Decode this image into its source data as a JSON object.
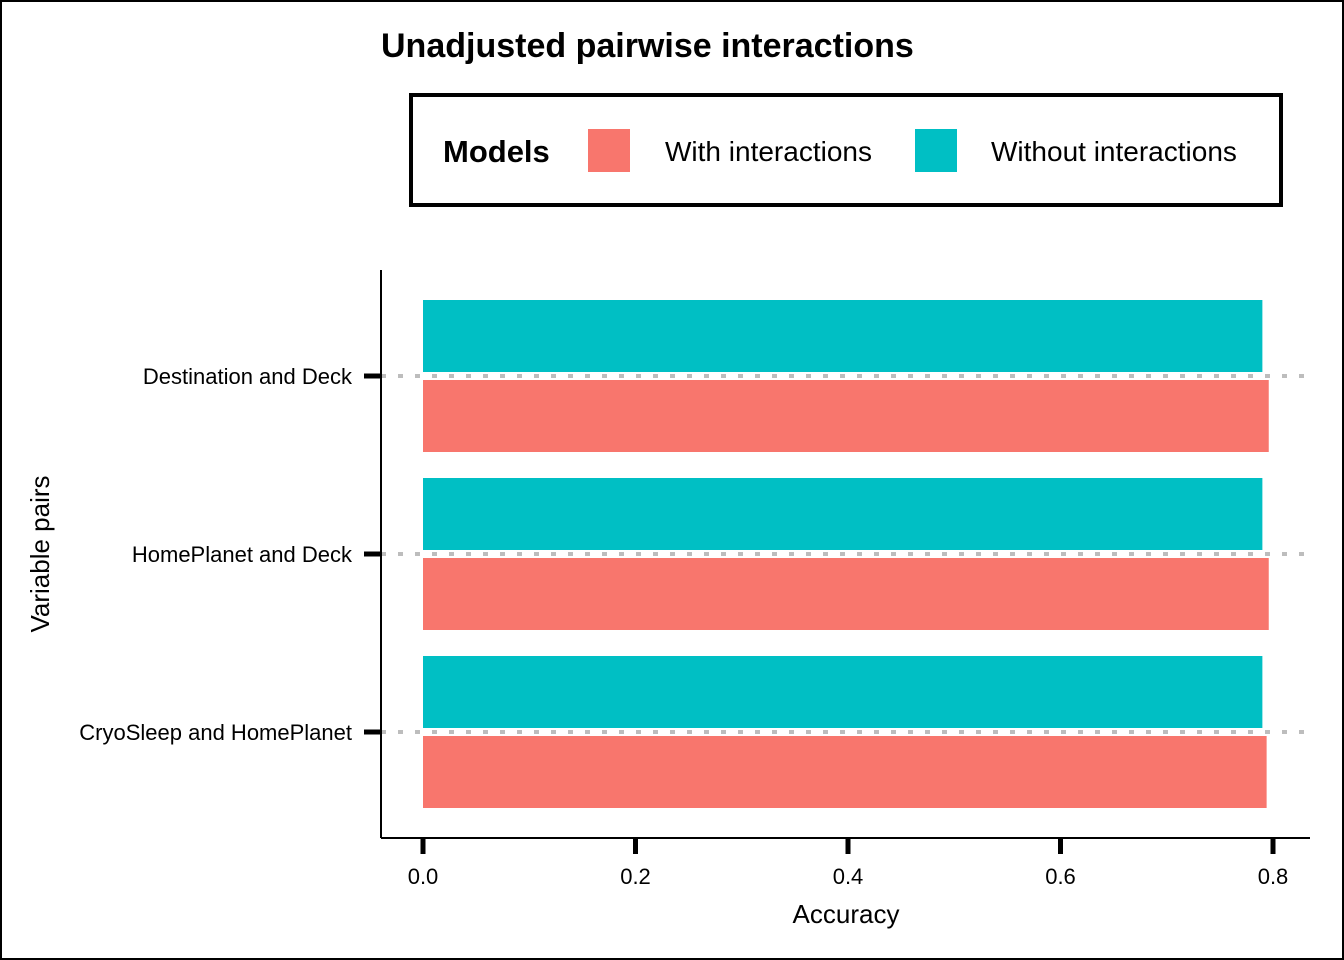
{
  "chart_data": {
    "type": "bar",
    "orientation": "horizontal",
    "title": "Unadjusted pairwise interactions",
    "xlabel": "Accuracy",
    "ylabel": "Variable pairs",
    "categories": [
      "CryoSleep and HomePlanet",
      "HomePlanet and Deck",
      "Destination and Deck"
    ],
    "xlim": [
      0,
      0.8
    ],
    "xticks": [
      0.0,
      0.2,
      0.4,
      0.6,
      0.8
    ],
    "xtick_labels": [
      "0.0",
      "0.2",
      "0.4",
      "0.6",
      "0.8"
    ],
    "legend": {
      "title": "Models",
      "placement": "top"
    },
    "series": [
      {
        "name": "With interactions",
        "color": "#F8766D",
        "values": [
          0.794,
          0.796,
          0.796
        ]
      },
      {
        "name": "Without interactions",
        "color": "#00BFC4",
        "values": [
          0.79,
          0.79,
          0.79
        ]
      }
    ],
    "gridlines": "dotted horizontal at categories"
  }
}
